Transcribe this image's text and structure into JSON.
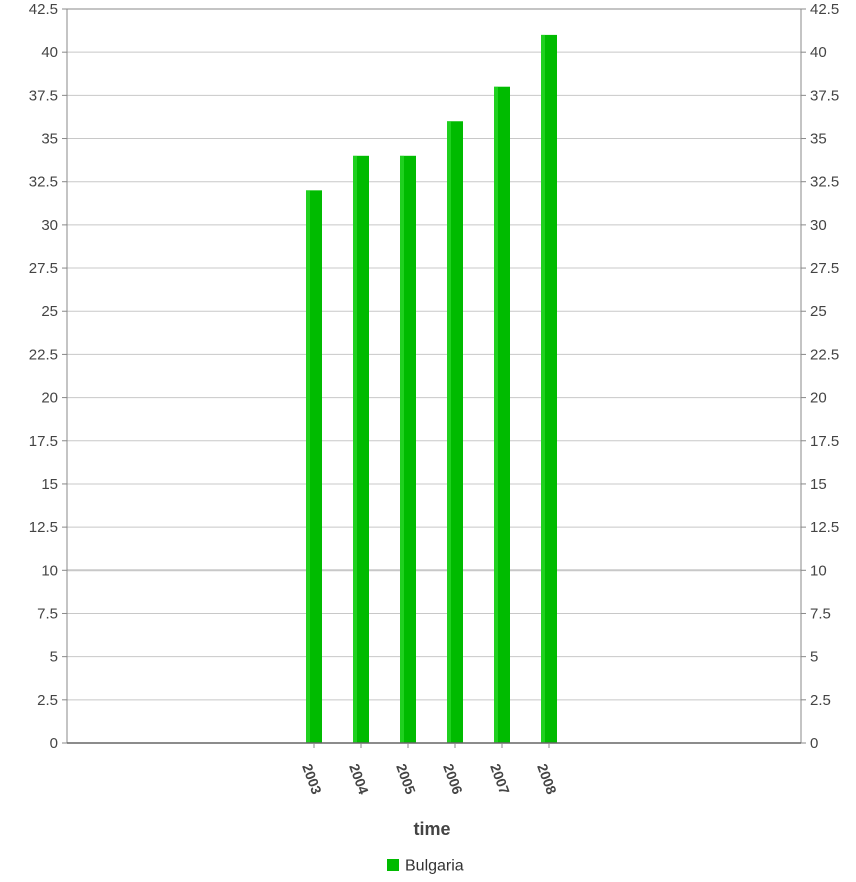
{
  "chart_data": {
    "type": "bar",
    "title": "",
    "xlabel": "time",
    "ylabel": "",
    "categories": [
      "2003",
      "2004",
      "2005",
      "2006",
      "2007",
      "2008"
    ],
    "series": [
      {
        "name": "Bulgaria",
        "values": [
          32,
          34,
          34,
          36,
          38,
          41
        ]
      }
    ],
    "ylim": [
      0,
      42.5
    ],
    "yticks": [
      "0",
      "2.5",
      "5",
      "7.5",
      "10",
      "12.5",
      "15",
      "17.5",
      "20",
      "22.5",
      "25",
      "27.5",
      "30",
      "32.5",
      "35",
      "37.5",
      "40",
      "42.5"
    ],
    "grid": true,
    "legend_position": "bottom-center",
    "colors": {
      "bar": "#00bb00",
      "bar_highlight": "#33dd33",
      "grid": "#c8c8c8",
      "axis": "#888888"
    }
  }
}
